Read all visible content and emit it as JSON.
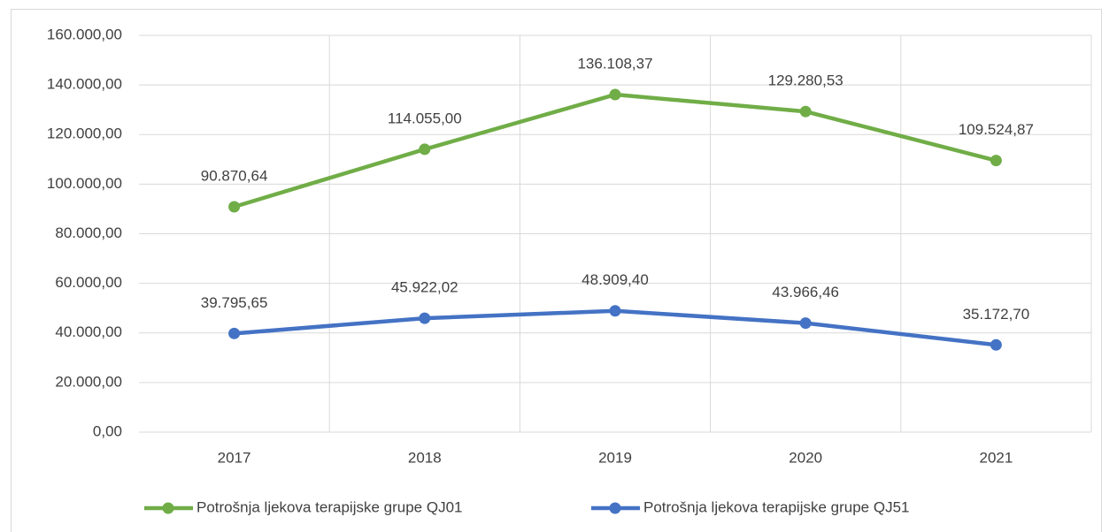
{
  "chart_data": {
    "type": "line",
    "categories": [
      "2017",
      "2018",
      "2019",
      "2020",
      "2021"
    ],
    "series": [
      {
        "name": "Potrošnja ljekova terapijske grupe QJ01",
        "color": "#70ad47",
        "values": [
          90870.64,
          114055.0,
          136108.37,
          129280.53,
          109524.87
        ],
        "value_labels": [
          "90.870,64",
          "114.055,00",
          "136.108,37",
          "129.280,53",
          "109.524,87"
        ]
      },
      {
        "name": "Potrošnja ljekova terapijske grupe QJ51",
        "color": "#4472c4",
        "values": [
          39795.65,
          45922.02,
          48909.4,
          43966.46,
          35172.7
        ],
        "value_labels": [
          "39.795,65",
          "45.922,02",
          "48.909,40",
          "43.966,46",
          "35.172,70"
        ]
      }
    ],
    "ylim": [
      0,
      160000
    ],
    "yticks": [
      {
        "value": 0,
        "label": "0,00"
      },
      {
        "value": 20000,
        "label": "20.000,00"
      },
      {
        "value": 40000,
        "label": "40.000,00"
      },
      {
        "value": 60000,
        "label": "60.000,00"
      },
      {
        "value": 80000,
        "label": "80.000,00"
      },
      {
        "value": 100000,
        "label": "100.000,00"
      },
      {
        "value": 120000,
        "label": "120.000,00"
      },
      {
        "value": 140000,
        "label": "140.000,00"
      },
      {
        "value": 160000,
        "label": "160.000,00"
      }
    ],
    "grid": true,
    "legend": "bottom"
  }
}
